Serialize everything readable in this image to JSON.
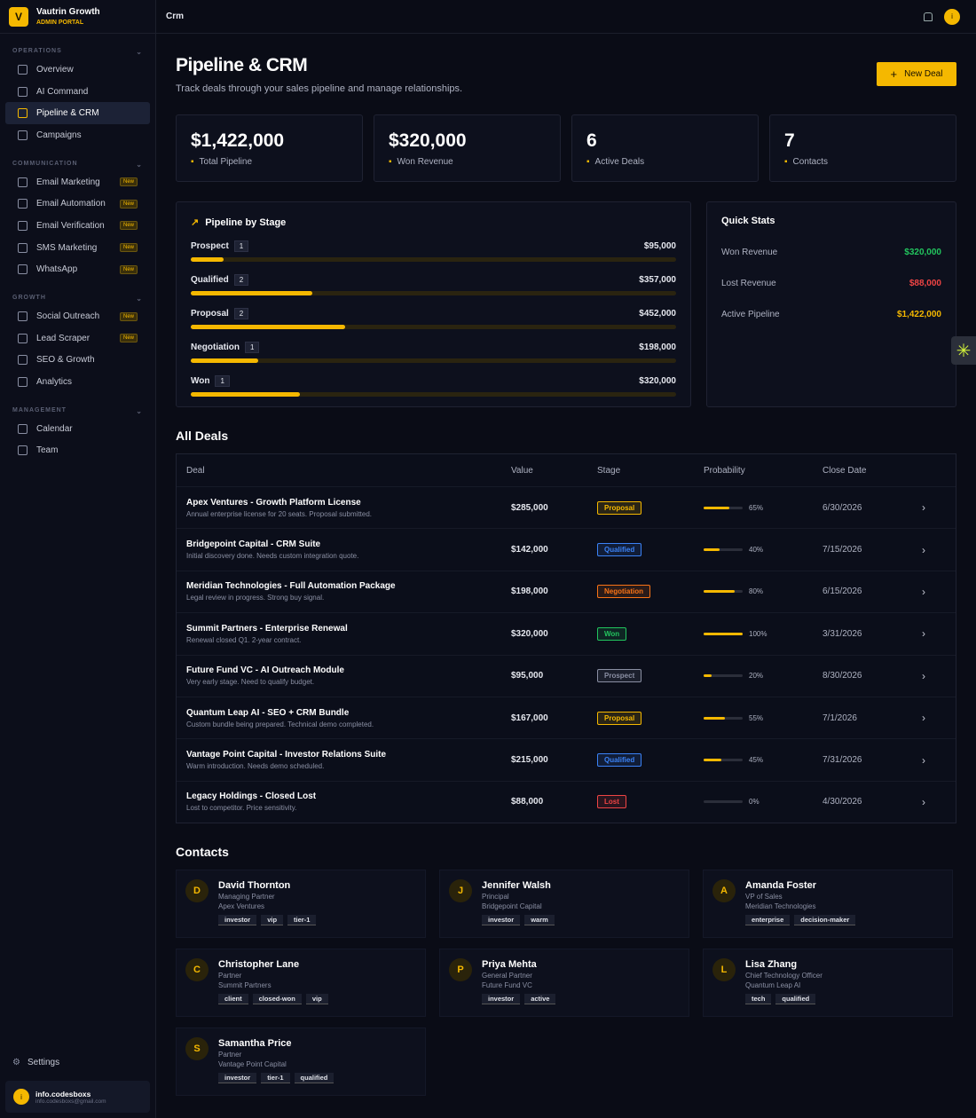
{
  "sidebar": {
    "logo": "V",
    "brand": "Vautrin Growth",
    "portal": "ADMIN PORTAL",
    "sections": [
      {
        "title": "OPERATIONS",
        "items": [
          {
            "label": "Overview"
          },
          {
            "label": "AI Command"
          },
          {
            "label": "Pipeline & CRM",
            "active": true
          },
          {
            "label": "Campaigns"
          }
        ]
      },
      {
        "title": "COMMUNICATION",
        "items": [
          {
            "label": "Email Marketing",
            "badge": "New"
          },
          {
            "label": "Email Automation",
            "badge": "New"
          },
          {
            "label": "Email Verification",
            "badge": "New"
          },
          {
            "label": "SMS Marketing",
            "badge": "New"
          },
          {
            "label": "WhatsApp",
            "badge": "New"
          }
        ]
      },
      {
        "title": "GROWTH",
        "items": [
          {
            "label": "Social Outreach",
            "badge": "New"
          },
          {
            "label": "Lead Scraper",
            "badge": "New"
          },
          {
            "label": "SEO & Growth"
          },
          {
            "label": "Analytics"
          }
        ]
      },
      {
        "title": "MANAGEMENT",
        "items": [
          {
            "label": "Calendar"
          },
          {
            "label": "Team"
          }
        ]
      }
    ],
    "settings": "Settings",
    "user": {
      "avatar": "i",
      "name": "info.codesboxs",
      "email": "info.codesboxs@gmail.com"
    }
  },
  "topbar": {
    "title": "Crm",
    "avatar": "i"
  },
  "header": {
    "title": "Pipeline & CRM",
    "subtitle": "Track deals through your sales pipeline and manage relationships.",
    "button": "New Deal"
  },
  "stats": [
    {
      "value": 1422000,
      "label": "$1,422,000",
      "caption": "Total Pipeline"
    },
    {
      "value": 320000,
      "label": "$320,000",
      "caption": "Won Revenue"
    },
    {
      "value": 6,
      "caption": "Active Deals"
    },
    {
      "value": 7,
      "caption": "Contacts"
    }
  ],
  "pipeline": {
    "title": "Pipeline by Stage",
    "stages": [
      {
        "name": "Prospect",
        "count": 1,
        "value": 95000,
        "label": "$95,000"
      },
      {
        "name": "Qualified",
        "count": 2,
        "value": 357000,
        "label": "$357,000"
      },
      {
        "name": "Proposal",
        "count": 2,
        "value": 452000,
        "label": "$452,000"
      },
      {
        "name": "Negotiation",
        "count": 1,
        "value": 198000,
        "label": "$198,000"
      },
      {
        "name": "Won",
        "count": 1,
        "value": 320000,
        "label": "$320,000"
      }
    ]
  },
  "quick_stats": {
    "title": "Quick Stats",
    "rows": [
      {
        "label": "Won Revenue",
        "value": "$320,000",
        "color": "#22c55e"
      },
      {
        "label": "Lost Revenue",
        "value": "$88,000",
        "color": "#ef4444"
      },
      {
        "label": "Active Pipeline",
        "value": "$1,422,000",
        "color": "#f5b800"
      }
    ]
  },
  "deals": {
    "title": "All Deals",
    "columns": [
      "Deal",
      "Value",
      "Stage",
      "Probability",
      "Close Date"
    ],
    "rows": [
      {
        "name": "Apex Ventures - Growth Platform License",
        "desc": "Annual enterprise license for 20 seats. Proposal submitted.",
        "value": "$285,000",
        "stage": "Proposal",
        "stage_color": "#f5b800",
        "probability": 65,
        "probability_label": "65%",
        "close": "6/30/2026"
      },
      {
        "name": "Bridgepoint Capital - CRM Suite",
        "desc": "Initial discovery done. Needs custom integration quote.",
        "value": "$142,000",
        "stage": "Qualified",
        "stage_color": "#3b82f6",
        "probability": 40,
        "probability_label": "40%",
        "close": "7/15/2026"
      },
      {
        "name": "Meridian Technologies - Full Automation Package",
        "desc": "Legal review in progress. Strong buy signal.",
        "value": "$198,000",
        "stage": "Negotiation",
        "stage_color": "#f97316",
        "probability": 80,
        "probability_label": "80%",
        "close": "6/15/2026"
      },
      {
        "name": "Summit Partners - Enterprise Renewal",
        "desc": "Renewal closed Q1. 2-year contract.",
        "value": "$320,000",
        "stage": "Won",
        "stage_color": "#22c55e",
        "probability": 100,
        "probability_label": "100%",
        "close": "3/31/2026"
      },
      {
        "name": "Future Fund VC - AI Outreach Module",
        "desc": "Very early stage. Need to qualify budget.",
        "value": "$95,000",
        "stage": "Prospect",
        "stage_color": "#8a8fa3",
        "probability": 20,
        "probability_label": "20%",
        "close": "8/30/2026"
      },
      {
        "name": "Quantum Leap AI - SEO + CRM Bundle",
        "desc": "Custom bundle being prepared. Technical demo completed.",
        "value": "$167,000",
        "stage": "Proposal",
        "stage_color": "#f5b800",
        "probability": 55,
        "probability_label": "55%",
        "close": "7/1/2026"
      },
      {
        "name": "Vantage Point Capital - Investor Relations Suite",
        "desc": "Warm introduction. Needs demo scheduled.",
        "value": "$215,000",
        "stage": "Qualified",
        "stage_color": "#3b82f6",
        "probability": 45,
        "probability_label": "45%",
        "close": "7/31/2026"
      },
      {
        "name": "Legacy Holdings - Closed Lost",
        "desc": "Lost to competitor. Price sensitivity.",
        "value": "$88,000",
        "stage": "Lost",
        "stage_color": "#ef4444",
        "probability": 0,
        "probability_label": "0%",
        "close": "4/30/2026"
      }
    ]
  },
  "contacts": {
    "title": "Contacts",
    "list": [
      {
        "initial": "D",
        "name": "David Thornton",
        "role": "Managing Partner",
        "company": "Apex Ventures",
        "tags": [
          "investor",
          "vip",
          "tier-1"
        ]
      },
      {
        "initial": "J",
        "name": "Jennifer Walsh",
        "role": "Principal",
        "company": "Bridgepoint Capital",
        "tags": [
          "investor",
          "warm"
        ]
      },
      {
        "initial": "A",
        "name": "Amanda Foster",
        "role": "VP of Sales",
        "company": "Meridian Technologies",
        "tags": [
          "enterprise",
          "decision-maker"
        ]
      },
      {
        "initial": "C",
        "name": "Christopher Lane",
        "role": "Partner",
        "company": "Summit Partners",
        "tags": [
          "client",
          "closed-won",
          "vip"
        ]
      },
      {
        "initial": "P",
        "name": "Priya Mehta",
        "role": "General Partner",
        "company": "Future Fund VC",
        "tags": [
          "investor",
          "active"
        ]
      },
      {
        "initial": "L",
        "name": "Lisa Zhang",
        "role": "Chief Technology Officer",
        "company": "Quantum Leap AI",
        "tags": [
          "tech",
          "qualified"
        ]
      },
      {
        "initial": "S",
        "name": "Samantha Price",
        "role": "Partner",
        "company": "Vantage Point Capital",
        "tags": [
          "investor",
          "tier-1",
          "qualified"
        ]
      }
    ]
  }
}
